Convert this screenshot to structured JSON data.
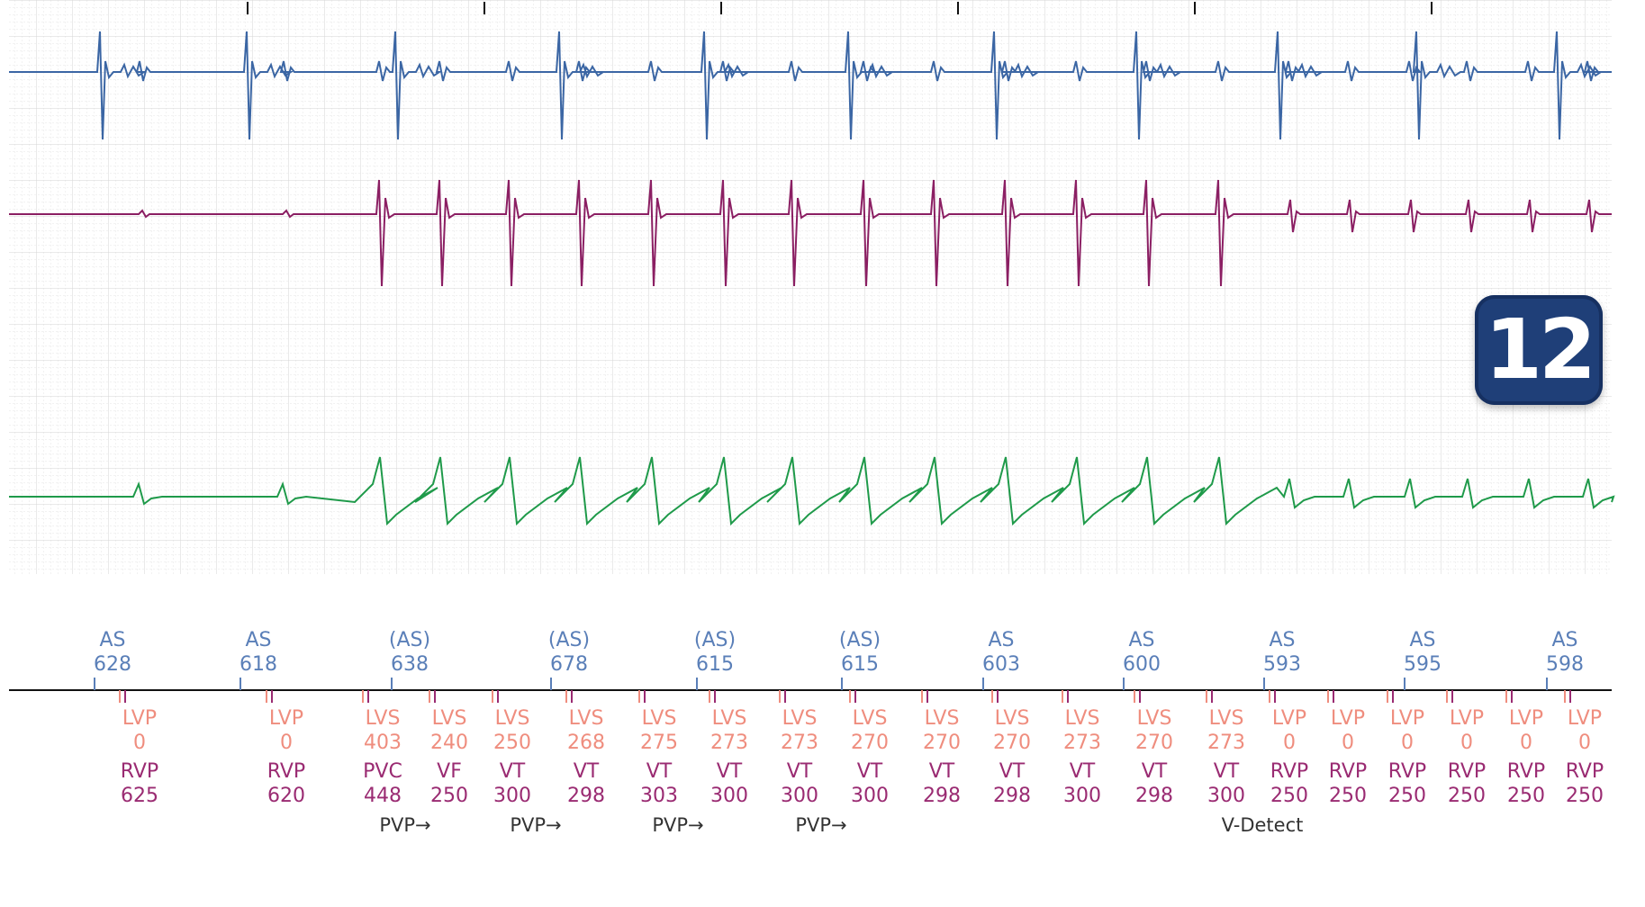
{
  "badge": {
    "number": "12"
  },
  "colors": {
    "atrial_egm": "#3b66a4",
    "ventricular_egm": "#8b1f63",
    "far_field_egm": "#1f9a4a",
    "atrial_marker": "#5a7fb8",
    "lv_marker": "#ef8d7e",
    "rv_marker": "#9a2b72",
    "annotation": "#333333",
    "badge": "#1f3f78"
  },
  "chart_data": {
    "type": "line",
    "title": "",
    "channels": [
      "atrial-egm",
      "ventricular-egm",
      "far-field-egm"
    ],
    "atrial_events": [
      {
        "label": "AS",
        "value": "628"
      },
      {
        "label": "AS",
        "value": "618"
      },
      {
        "label": "(AS)",
        "value": "638"
      },
      {
        "label": "(AS)",
        "value": "678"
      },
      {
        "label": "(AS)",
        "value": "615"
      },
      {
        "label": "(AS)",
        "value": "615"
      },
      {
        "label": "AS",
        "value": "603"
      },
      {
        "label": "AS",
        "value": "600"
      },
      {
        "label": "AS",
        "value": "593"
      },
      {
        "label": "AS",
        "value": "595"
      },
      {
        "label": "AS",
        "value": "598"
      }
    ],
    "lv_events": [
      {
        "label": "LVP",
        "value": "0"
      },
      {
        "label": "LVP",
        "value": "0"
      },
      {
        "label": "LVS",
        "value": "403"
      },
      {
        "label": "LVS",
        "value": "240"
      },
      {
        "label": "LVS",
        "value": "250"
      },
      {
        "label": "LVS",
        "value": "268"
      },
      {
        "label": "LVS",
        "value": "275"
      },
      {
        "label": "LVS",
        "value": "273"
      },
      {
        "label": "LVS",
        "value": "273"
      },
      {
        "label": "LVS",
        "value": "270"
      },
      {
        "label": "LVS",
        "value": "270"
      },
      {
        "label": "LVS",
        "value": "270"
      },
      {
        "label": "LVS",
        "value": "273"
      },
      {
        "label": "LVS",
        "value": "270"
      },
      {
        "label": "LVS",
        "value": "273"
      },
      {
        "label": "LVP",
        "value": "0"
      },
      {
        "label": "LVP",
        "value": "0"
      },
      {
        "label": "LVP",
        "value": "0"
      },
      {
        "label": "LVP",
        "value": "0"
      },
      {
        "label": "LVP",
        "value": "0"
      },
      {
        "label": "LVP",
        "value": "0"
      }
    ],
    "rv_events": [
      {
        "label": "RVP",
        "value": "625"
      },
      {
        "label": "RVP",
        "value": "620"
      },
      {
        "label": "PVC",
        "value": "448"
      },
      {
        "label": "VF",
        "value": "250"
      },
      {
        "label": "VT",
        "value": "300"
      },
      {
        "label": "VT",
        "value": "298"
      },
      {
        "label": "VT",
        "value": "303"
      },
      {
        "label": "VT",
        "value": "300"
      },
      {
        "label": "VT",
        "value": "300"
      },
      {
        "label": "VT",
        "value": "300"
      },
      {
        "label": "VT",
        "value": "298"
      },
      {
        "label": "VT",
        "value": "298"
      },
      {
        "label": "VT",
        "value": "300"
      },
      {
        "label": "VT",
        "value": "298"
      },
      {
        "label": "VT",
        "value": "300"
      },
      {
        "label": "RVP",
        "value": "250"
      },
      {
        "label": "RVP",
        "value": "250"
      },
      {
        "label": "RVP",
        "value": "250"
      },
      {
        "label": "RVP",
        "value": "250"
      },
      {
        "label": "RVP",
        "value": "250"
      },
      {
        "label": "RVP",
        "value": "250"
      }
    ],
    "annotations": [
      "PVP→",
      "PVP→",
      "PVP→",
      "PVP→",
      "V-Detect"
    ],
    "grid": true
  }
}
